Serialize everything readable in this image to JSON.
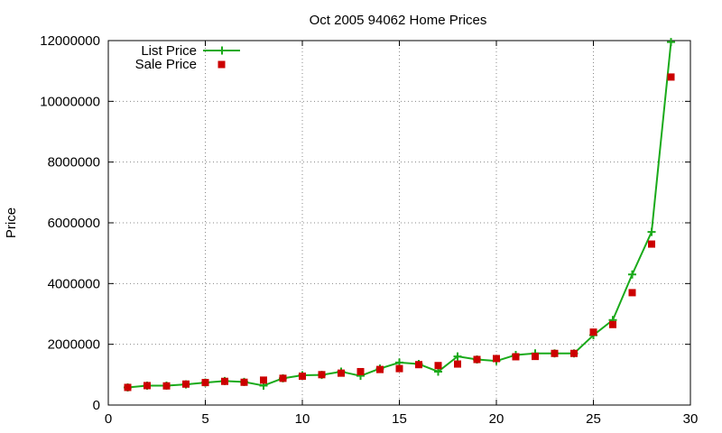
{
  "chart_data": {
    "type": "line",
    "title": "Oct 2005 94062 Home Prices",
    "xlabel": "",
    "ylabel": "Price",
    "xlim": [
      0,
      30
    ],
    "ylim": [
      0,
      12000000
    ],
    "x_ticks": [
      0,
      5,
      10,
      15,
      20,
      25,
      30
    ],
    "y_ticks": [
      0,
      2000000,
      4000000,
      6000000,
      8000000,
      10000000,
      12000000
    ],
    "grid": true,
    "legend_position": "top-left",
    "series": [
      {
        "name": "List Price",
        "style": "line-plus",
        "color": "#1aaa1a",
        "x": [
          1,
          2,
          3,
          4,
          5,
          6,
          7,
          8,
          9,
          10,
          11,
          12,
          13,
          14,
          15,
          16,
          17,
          18,
          19,
          20,
          21,
          22,
          23,
          24,
          25,
          26,
          27,
          28,
          29
        ],
        "values": [
          580000,
          640000,
          640000,
          680000,
          740000,
          790000,
          760000,
          640000,
          880000,
          980000,
          990000,
          1100000,
          960000,
          1200000,
          1400000,
          1350000,
          1100000,
          1600000,
          1500000,
          1450000,
          1650000,
          1700000,
          1700000,
          1700000,
          2300000,
          2800000,
          4300000,
          5700000,
          11950000
        ]
      },
      {
        "name": "Sale Price",
        "style": "square-marker",
        "color": "#cc0000",
        "x": [
          1,
          2,
          3,
          4,
          5,
          6,
          7,
          8,
          9,
          10,
          11,
          12,
          13,
          14,
          15,
          16,
          17,
          18,
          19,
          20,
          21,
          22,
          23,
          24,
          25,
          26,
          27,
          28,
          29
        ],
        "values": [
          580000,
          640000,
          630000,
          690000,
          740000,
          780000,
          750000,
          820000,
          880000,
          950000,
          1000000,
          1050000,
          1100000,
          1170000,
          1200000,
          1330000,
          1300000,
          1350000,
          1500000,
          1530000,
          1590000,
          1600000,
          1700000,
          1700000,
          2400000,
          2650000,
          3700000,
          5300000,
          10800000
        ]
      }
    ]
  }
}
